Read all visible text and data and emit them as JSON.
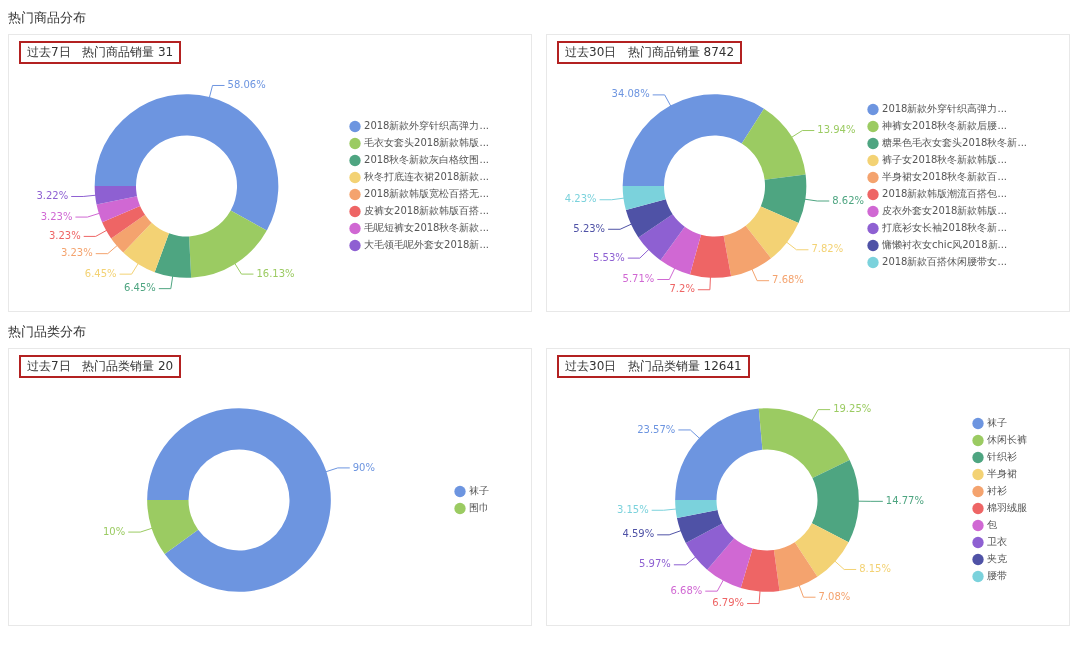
{
  "chart_data": [
    {
      "type": "donut",
      "title": "过去7日   热门商品销量 31",
      "annotations": [
        "热门商品分布"
      ],
      "legend": "right",
      "categories": [
        "2018新款外穿针织高弹力...",
        "毛衣女套头2018新款韩版...",
        "2018秋冬新款灰白格纹围...",
        "秋冬打底连衣裙2018新款...",
        "2018新款韩版宽松百搭无...",
        "皮裤女2018新款韩版百搭...",
        "毛呢短裤女2018秋冬新款...",
        "大毛领毛呢外套女2018新..."
      ],
      "values": [
        58.06,
        16.13,
        6.45,
        6.45,
        3.23,
        3.23,
        3.23,
        3.22
      ],
      "value_labels": [
        "58.06%",
        "16.13%",
        "6.45%",
        "6.45%",
        "3.23%",
        "3.23%",
        "3.23%",
        "3.22%"
      ],
      "colors": [
        "#6d95e0",
        "#9bcb62",
        "#4ea581",
        "#f3d274",
        "#f4a36e",
        "#ee6565",
        "#d068d3",
        "#8e60d2"
      ]
    },
    {
      "type": "donut",
      "title": "过去30日   热门商品销量 8742",
      "legend": "right",
      "categories": [
        "2018新款外穿针织高弹力...",
        "神裤女2018秋冬新款后腰...",
        "糖果色毛衣女套头2018秋冬新...",
        "裤子女2018秋冬新款韩版...",
        "半身裙女2018秋冬新款百...",
        "2018新款韩版潮流百搭包...",
        "皮衣外套女2018新款韩版...",
        "打底衫女长袖2018秋冬新...",
        "慵懒衬衣女chic风2018新...",
        "2018新款百搭休闲腰带女..."
      ],
      "values": [
        34.08,
        13.94,
        8.62,
        7.82,
        7.68,
        7.2,
        5.71,
        5.53,
        5.23,
        4.23
      ],
      "value_labels": [
        "34.08%",
        "13.94%",
        "8.62%",
        "7.82%",
        "7.68%",
        "7.2%",
        "5.71%",
        "5.53%",
        "5.23%",
        "4.23%"
      ],
      "colors": [
        "#6d95e0",
        "#9bcb62",
        "#4ea581",
        "#f3d274",
        "#f4a36e",
        "#ee6565",
        "#d068d3",
        "#8e60d2",
        "#4f52a6",
        "#7bd2dc"
      ]
    },
    {
      "type": "donut",
      "title": "过去7日   热门品类销量 20",
      "annotations": [
        "热门品类分布"
      ],
      "legend": "right",
      "categories": [
        "袜子",
        "围巾"
      ],
      "values": [
        90,
        10
      ],
      "value_labels": [
        "90%",
        "10%"
      ],
      "colors": [
        "#6d95e0",
        "#9bcb62"
      ]
    },
    {
      "type": "donut",
      "title": "过去30日   热门品类销量 12641",
      "legend": "right",
      "categories": [
        "袜子",
        "休闲长裤",
        "针织衫",
        "半身裙",
        "衬衫",
        "棉羽绒服",
        "包",
        "卫衣",
        "夹克",
        "腰带"
      ],
      "values": [
        23.57,
        19.25,
        14.77,
        8.15,
        7.08,
        6.79,
        6.68,
        5.97,
        4.59,
        3.15
      ],
      "value_labels": [
        "23.57%",
        "19.25%",
        "14.77%",
        "8.15%",
        "7.08%",
        "6.79%",
        "6.68%",
        "5.97%",
        "4.59%",
        "3.15%"
      ],
      "colors": [
        "#6d95e0",
        "#9bcb62",
        "#4ea581",
        "#f3d274",
        "#f4a36e",
        "#ee6565",
        "#d068d3",
        "#8e60d2",
        "#4f52a6",
        "#7bd2dc"
      ]
    }
  ]
}
